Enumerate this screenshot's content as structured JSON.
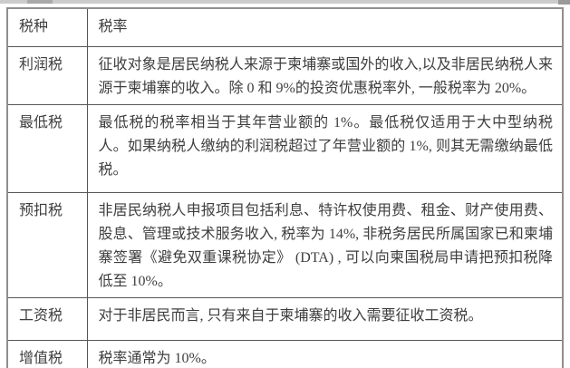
{
  "colors": {
    "text": "#3e3e3e",
    "border_inner": "#565656",
    "border_outer": "#8f8f8f",
    "background": "#ffffff"
  },
  "table": {
    "columns": [
      "税种",
      "税率"
    ],
    "rows": [
      {
        "type": "利润税",
        "desc": "征收对象是居民纳税人来源于柬埔寨或国外的收入,以及非居民纳税人来源于柬埔寨的收入。除 0 和 9%的投资优惠税率外, 一般税率为 20%。"
      },
      {
        "type": "最低税",
        "desc": "最低税的税率相当于其年营业额的 1%。最低税仅适用于大中型纳税人。如果纳税人缴纳的利润税超过了年营业额的 1%, 则其无需缴纳最低税。"
      },
      {
        "type": "预扣税",
        "desc": "非居民纳税人申报项目包括利息、特许权使用费、租金、财产使用费、股息、管理或技术服务收入, 税率为 14%, 非税务居民所属国家已和柬埔寨签署《避免双重课税协定》 (DTA) , 可以向柬国税局申请把预扣税降低至 10%。"
      },
      {
        "type": "工资税",
        "desc": "对于非居民而言, 只有来自于柬埔寨的收入需要征收工资税。"
      },
      {
        "type": "增值税",
        "desc": "税率通常为 10%。"
      }
    ]
  }
}
